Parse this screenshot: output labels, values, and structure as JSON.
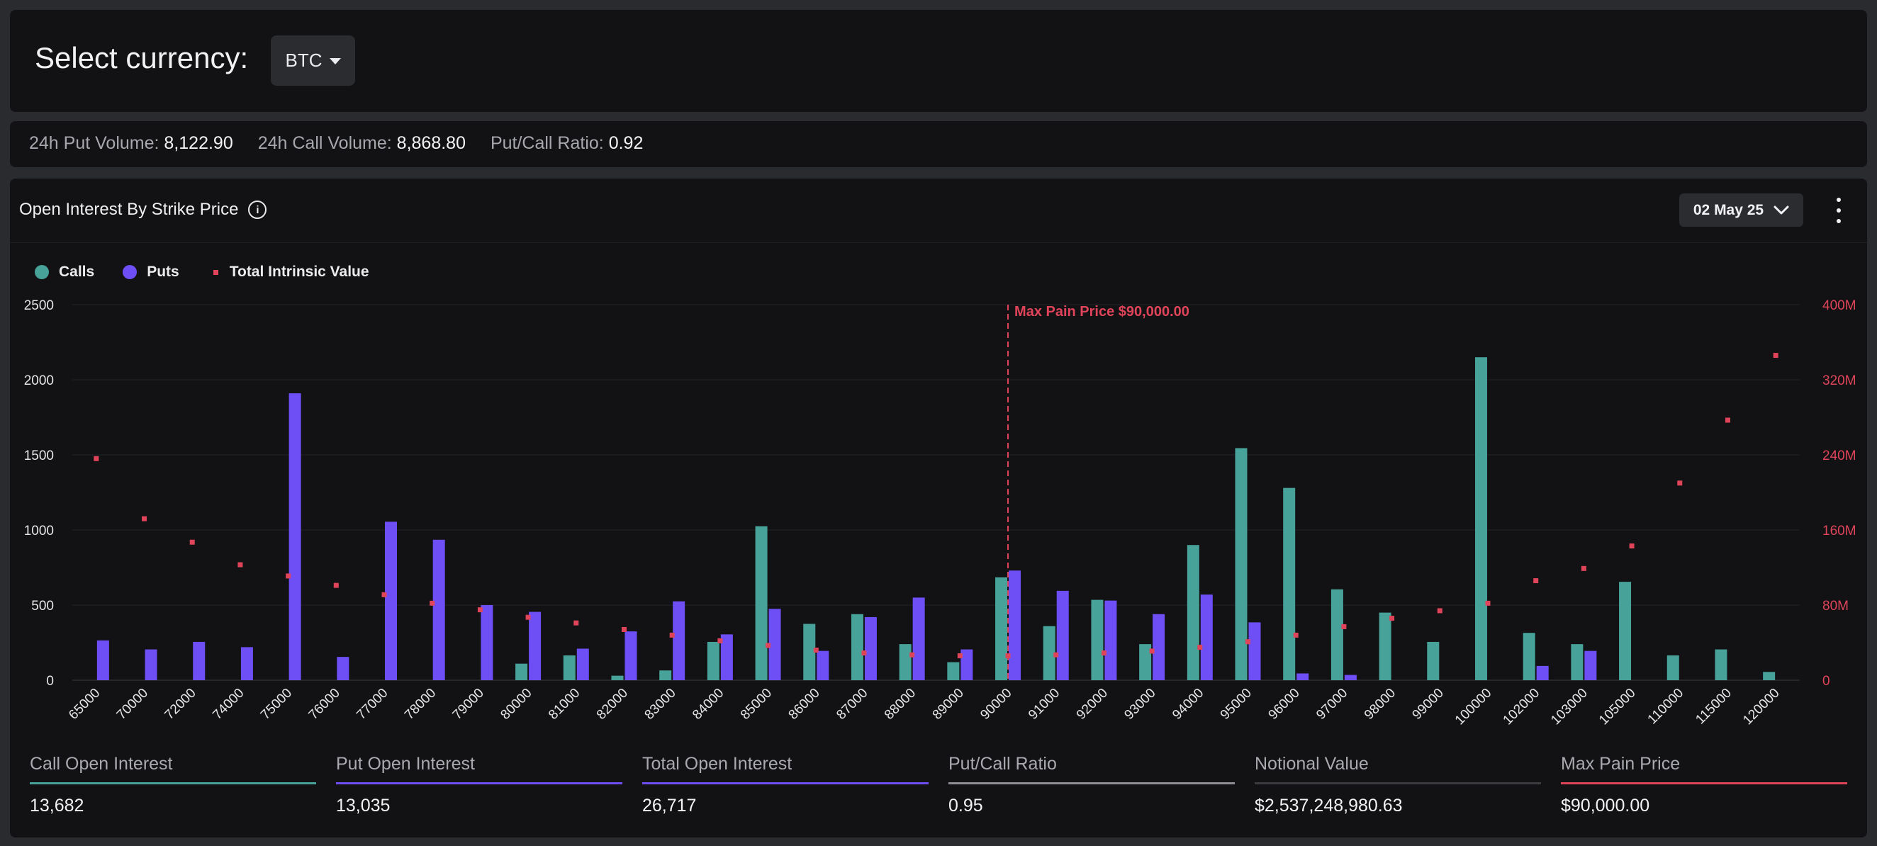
{
  "header": {
    "title": "Select currency:",
    "currency": "BTC"
  },
  "summary": [
    {
      "label": "24h Put Volume:",
      "value": "8,122.90"
    },
    {
      "label": "24h Call Volume:",
      "value": "8,868.80"
    },
    {
      "label": "Put/Call Ratio:",
      "value": "0.92"
    }
  ],
  "chart_panel": {
    "title": "Open Interest By Strike Price",
    "expiry": "02 May 25"
  },
  "legend": {
    "calls": "Calls",
    "puts": "Puts",
    "intrinsic": "Total Intrinsic Value"
  },
  "colors": {
    "calls": "#47a39a",
    "puts": "#6e4ff5",
    "intrinsic": "#e0445a",
    "grid": "#232428",
    "axis_left": "#e6e6e8"
  },
  "chart_data": {
    "type": "bar",
    "title": "Open Interest By Strike Price",
    "categories": [
      "65000",
      "70000",
      "72000",
      "74000",
      "75000",
      "76000",
      "77000",
      "78000",
      "79000",
      "80000",
      "81000",
      "82000",
      "83000",
      "84000",
      "85000",
      "86000",
      "87000",
      "88000",
      "89000",
      "90000",
      "91000",
      "92000",
      "93000",
      "94000",
      "95000",
      "96000",
      "97000",
      "98000",
      "99000",
      "100000",
      "102000",
      "103000",
      "105000",
      "110000",
      "115000",
      "120000"
    ],
    "series": [
      {
        "name": "Calls",
        "axis": "left",
        "type": "bar",
        "values": [
          0,
          0,
          0,
          0,
          0,
          0,
          0,
          0,
          0,
          110,
          165,
          30,
          65,
          255,
          1025,
          375,
          440,
          240,
          120,
          685,
          360,
          535,
          240,
          900,
          1545,
          1280,
          605,
          450,
          255,
          2150,
          315,
          240,
          655,
          165,
          205,
          55
        ]
      },
      {
        "name": "Puts",
        "axis": "left",
        "type": "bar",
        "values": [
          265,
          205,
          255,
          220,
          1910,
          155,
          1055,
          935,
          500,
          455,
          210,
          325,
          525,
          305,
          475,
          195,
          420,
          550,
          205,
          730,
          595,
          530,
          440,
          570,
          385,
          45,
          35,
          0,
          0,
          0,
          95,
          195,
          0,
          0,
          0,
          0
        ]
      },
      {
        "name": "Total Intrinsic Value",
        "axis": "right",
        "type": "scatter",
        "values": [
          236,
          172,
          147,
          123,
          111,
          101,
          91,
          82,
          75,
          67,
          61,
          54,
          48,
          42,
          37,
          32,
          29,
          27,
          26,
          26,
          27,
          29,
          31,
          35,
          41,
          48,
          57,
          66,
          74,
          82,
          106,
          119,
          143,
          210,
          277,
          346
        ]
      }
    ],
    "ylim_left": [
      0,
      2500
    ],
    "yticks_left": [
      0,
      500,
      1000,
      1500,
      2000,
      2500
    ],
    "ylim_right": [
      0,
      400
    ],
    "yticks_right": [
      "0",
      "80M",
      "160M",
      "240M",
      "320M",
      "400M"
    ],
    "annotation": {
      "label": "Max Pain Price $90,000.00",
      "category": "90000"
    },
    "grid": true,
    "legend_position": "top-left"
  },
  "metrics": [
    {
      "label": "Call Open Interest",
      "value": "13,682",
      "color": "#47a39a"
    },
    {
      "label": "Put Open Interest",
      "value": "13,035",
      "color": "#6e4ff5"
    },
    {
      "label": "Total Open Interest",
      "value": "26,717",
      "color": "#6e4ff5"
    },
    {
      "label": "Put/Call Ratio",
      "value": "0.95",
      "color": "#8e8f94"
    },
    {
      "label": "Notional Value",
      "value": "$2,537,248,980.63",
      "color": "#3a3b3f"
    },
    {
      "label": "Max Pain Price",
      "value": "$90,000.00",
      "color": "#e0445a"
    }
  ]
}
